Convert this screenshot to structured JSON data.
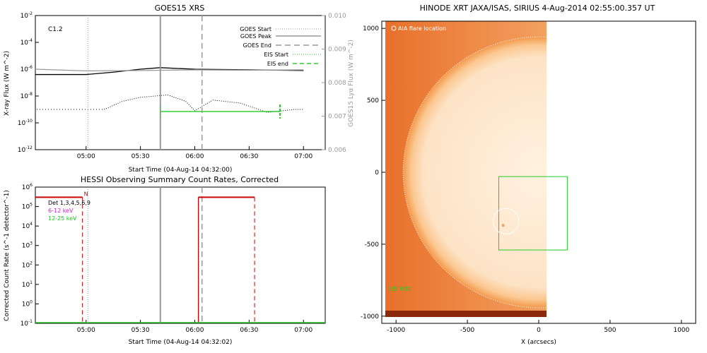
{
  "chart_data": [
    {
      "type": "line",
      "title": "GOES15 XRS",
      "xlabel": "Start Time (04-Aug-14 04:32:00)",
      "ylabel": "X-ray Flux (W m^-2)",
      "y2label": "GOES15 Lyα Flux (W m^-2)",
      "annotation": "C1.2",
      "x_ticks": [
        "05:00",
        "05:30",
        "06:00",
        "06:30",
        "07:00"
      ],
      "y_ticks": [
        "10^-2",
        "10^-4",
        "10^-6",
        "10^-8",
        "10^-10",
        "10^-12"
      ],
      "y2_ticks": [
        "0.010",
        "0.009",
        "0.008",
        "0.007",
        "0.006"
      ],
      "y_scale": "log",
      "ylim": [
        1e-12,
        0.01
      ],
      "y2lim": [
        0.006,
        0.01
      ],
      "legend": [
        "GOES Start",
        "GOES Peak",
        "GOES End",
        "EIS Start",
        "EIS end"
      ],
      "markers": {
        "goes_start": "05:01",
        "goes_peak": "05:41",
        "goes_end": "06:04",
        "eis_start": "05:41",
        "eis_end": "06:47"
      },
      "series": [
        {
          "name": "long",
          "x": [
            "04:32",
            "05:00",
            "05:15",
            "05:30",
            "05:41",
            "06:00",
            "06:30",
            "07:00"
          ],
          "y": [
            4e-07,
            4e-07,
            6e-07,
            1e-06,
            1.3e-06,
            1e-06,
            9e-07,
            8e-07
          ]
        },
        {
          "name": "lya",
          "x": [
            "04:32",
            "05:00",
            "05:30",
            "06:00",
            "06:30",
            "07:00"
          ],
          "y": [
            0.0084,
            0.00835,
            0.00836,
            0.00838,
            0.00837,
            0.00838
          ]
        },
        {
          "name": "short",
          "x": [
            "05:10",
            "05:20",
            "05:30",
            "05:45",
            "05:55",
            "06:00",
            "06:10",
            "06:25",
            "06:40",
            "06:55",
            "07:00"
          ],
          "y": [
            1e-09,
            4e-09,
            8e-09,
            1.2e-08,
            4e-09,
            8e-10,
            5e-09,
            3e-09,
            6e-10,
            1e-09,
            1e-09
          ]
        }
      ],
      "eis_level": 7e-10
    },
    {
      "type": "line",
      "title": "HESSI Observing Summary Count Rates, Corrected",
      "xlabel": "Start Time (04-Aug-14 04:32:02)",
      "ylabel": "Corrected Count Rate (s^-1 detector^-1)",
      "x_ticks": [
        "05:00",
        "05:30",
        "06:00",
        "06:30",
        "07:00"
      ],
      "y_ticks": [
        "10^6",
        "10^5",
        "10^4",
        "10^3",
        "10^2",
        "10^1",
        "10^0",
        "10^-1"
      ],
      "y_scale": "log",
      "ylim": [
        0.1,
        1000000.0
      ],
      "legend": [
        "Det 1,3,4,5,6,9",
        "6-12 keV",
        "12-25 keV"
      ],
      "flag_label": "N",
      "flags": [
        {
          "x0": "04:32",
          "x1": "04:58",
          "y": 300000.0
        },
        {
          "x0": "06:02",
          "x1": "06:33",
          "y": 300000.0
        }
      ],
      "dashed_markers": [
        "04:58",
        "06:33"
      ],
      "solid_marker": "06:02",
      "gray_markers": [
        "05:01",
        "05:41",
        "06:04"
      ]
    },
    {
      "type": "heatmap",
      "title": "HINODE XRT JAXA/ISAS, SIRIUS   4-Aug-2014 02:55:00.357 UT",
      "xlabel": "X (arcsecs)",
      "x_ticks": [
        "-1000",
        "-500",
        "0",
        "500",
        "1000"
      ],
      "y_ticks": [
        "1000",
        "500",
        "0",
        "-500",
        "-1000"
      ],
      "xlim": [
        -1100,
        1100
      ],
      "ylim": [
        -1050,
        1050
      ],
      "annotation_top": "AIA flare location",
      "annotation_bottom": "EIS FOV",
      "image_extent_x": [
        -1100,
        70
      ],
      "limb_radius": 950,
      "eis_fov": {
        "x0": -280,
        "x1": 200,
        "y0": -540,
        "y1": -30
      },
      "flare_location": {
        "x": -230,
        "y": -340,
        "r": 90
      }
    }
  ]
}
